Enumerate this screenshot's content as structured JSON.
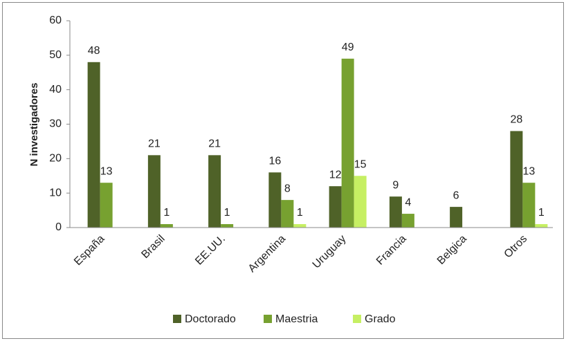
{
  "chart_data": {
    "type": "bar",
    "y_label": "N investigadores",
    "categories": [
      "España",
      "Brasil",
      "EE.UU.",
      "Argentina",
      "Uruguay",
      "Francia",
      "Belgica",
      "Otros"
    ],
    "series": [
      {
        "name": "Doctorado",
        "color": "#4f6228",
        "values": [
          48,
          21,
          21,
          16,
          12,
          9,
          6,
          28
        ]
      },
      {
        "name": "Maestria",
        "color": "#77a130",
        "values": [
          13,
          1,
          1,
          8,
          49,
          4,
          null,
          13
        ]
      },
      {
        "name": "Grado",
        "color": "#c6ef63",
        "values": [
          null,
          null,
          null,
          1,
          15,
          null,
          null,
          1
        ]
      }
    ],
    "ylim": [
      0,
      60
    ],
    "yticks": [
      0,
      10,
      20,
      30,
      40,
      50,
      60
    ],
    "grid": false,
    "legend": "bottom"
  }
}
